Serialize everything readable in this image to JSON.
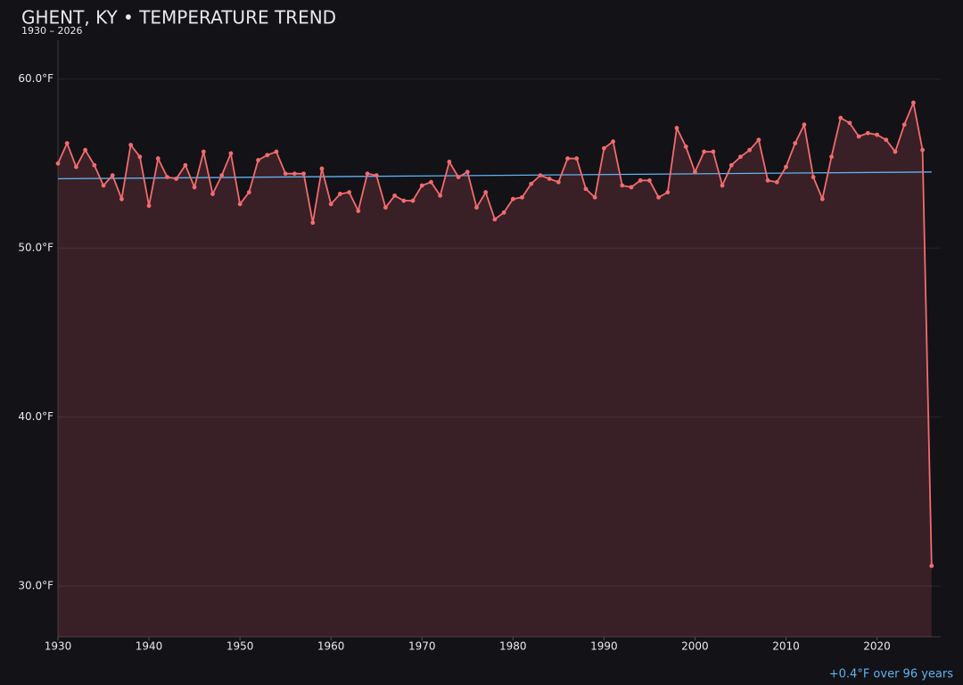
{
  "chart_data": {
    "type": "line",
    "title": "GHENT, KY • TEMPERATURE TREND",
    "subtitle": "1930 – 2026",
    "annotation": "+0.4°F over 96 years",
    "x": [
      1930,
      1931,
      1932,
      1933,
      1934,
      1935,
      1936,
      1937,
      1938,
      1939,
      1940,
      1941,
      1942,
      1943,
      1944,
      1945,
      1946,
      1947,
      1948,
      1949,
      1950,
      1951,
      1952,
      1953,
      1954,
      1955,
      1956,
      1957,
      1958,
      1959,
      1960,
      1961,
      1962,
      1963,
      1964,
      1965,
      1966,
      1967,
      1968,
      1969,
      1970,
      1971,
      1972,
      1973,
      1974,
      1975,
      1976,
      1977,
      1978,
      1979,
      1980,
      1981,
      1982,
      1983,
      1984,
      1985,
      1986,
      1987,
      1988,
      1989,
      1990,
      1991,
      1992,
      1993,
      1994,
      1995,
      1996,
      1997,
      1998,
      1999,
      2000,
      2001,
      2002,
      2003,
      2004,
      2005,
      2006,
      2007,
      2008,
      2009,
      2010,
      2011,
      2012,
      2013,
      2014,
      2015,
      2016,
      2017,
      2018,
      2019,
      2020,
      2021,
      2022,
      2023,
      2024,
      2025,
      2026
    ],
    "values": [
      55.0,
      56.2,
      54.8,
      55.8,
      54.9,
      53.7,
      54.3,
      52.9,
      56.1,
      55.4,
      52.5,
      55.3,
      54.2,
      54.1,
      54.9,
      53.6,
      55.7,
      53.2,
      54.3,
      55.6,
      52.6,
      53.3,
      55.2,
      55.5,
      55.7,
      54.4,
      54.4,
      54.4,
      51.5,
      54.7,
      52.6,
      53.2,
      53.3,
      52.2,
      54.4,
      54.3,
      52.4,
      53.1,
      52.8,
      52.8,
      53.7,
      53.9,
      53.1,
      55.1,
      54.2,
      54.5,
      52.4,
      53.3,
      51.7,
      52.1,
      52.9,
      53.0,
      53.8,
      54.3,
      54.1,
      53.9,
      55.3,
      55.3,
      53.5,
      53.0,
      55.9,
      56.3,
      53.7,
      53.6,
      54.0,
      54.0,
      53.0,
      53.3,
      57.1,
      56.0,
      54.5,
      55.7,
      55.7,
      53.7,
      54.9,
      55.4,
      55.8,
      56.4,
      54.0,
      53.9,
      54.8,
      56.2,
      57.3,
      54.2,
      52.9,
      55.4,
      57.7,
      57.4,
      56.6,
      56.8,
      56.7,
      56.4,
      55.7,
      57.3,
      58.6,
      55.8,
      31.2
    ],
    "color": "#f26b6e",
    "area": true,
    "trend": {
      "x": [
        1930,
        2026
      ],
      "values": [
        54.1,
        54.5
      ],
      "color": "#5fb3f0"
    },
    "xlim": [
      1930,
      2027
    ],
    "ylim": [
      27,
      62.3
    ],
    "xticks": [
      1930,
      1940,
      1950,
      1960,
      1970,
      1980,
      1990,
      2000,
      2010,
      2020
    ],
    "yticks": [
      {
        "value": 30,
        "label": "30.0°F"
      },
      {
        "value": 40,
        "label": "40.0°F"
      },
      {
        "value": 50,
        "label": "50.0°F"
      },
      {
        "value": 60,
        "label": "60.0°F"
      }
    ],
    "grid": true
  }
}
